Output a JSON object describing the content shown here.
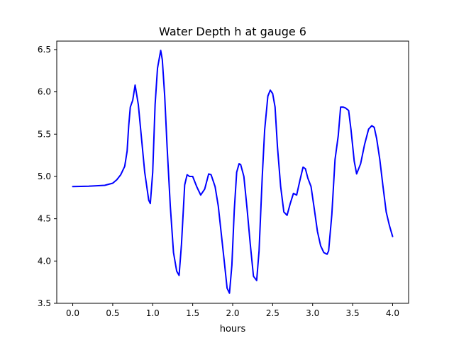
{
  "chart_data": {
    "type": "line",
    "title": "Water Depth h at gauge 6",
    "xlabel": "hours",
    "ylabel": "",
    "xlim": [
      -0.2,
      4.2
    ],
    "ylim": [
      3.5,
      6.6
    ],
    "xticks": [
      0.0,
      0.5,
      1.0,
      1.5,
      2.0,
      2.5,
      3.0,
      3.5,
      4.0
    ],
    "xtick_labels": [
      "0.0",
      "0.5",
      "1.0",
      "1.5",
      "2.0",
      "2.5",
      "3.0",
      "3.5",
      "4.0"
    ],
    "yticks": [
      3.5,
      4.0,
      4.5,
      5.0,
      5.5,
      6.0,
      6.5
    ],
    "ytick_labels": [
      "3.5",
      "4.0",
      "4.5",
      "5.0",
      "5.5",
      "6.0",
      "6.5"
    ],
    "grid": false,
    "series": [
      {
        "color": "#0000ff",
        "x": [
          0.0,
          0.2,
          0.4,
          0.5,
          0.55,
          0.6,
          0.65,
          0.68,
          0.7,
          0.72,
          0.75,
          0.78,
          0.82,
          0.85,
          0.9,
          0.95,
          0.97,
          1.0,
          1.03,
          1.06,
          1.1,
          1.12,
          1.15,
          1.18,
          1.22,
          1.26,
          1.3,
          1.33,
          1.36,
          1.4,
          1.43,
          1.46,
          1.5,
          1.55,
          1.6,
          1.65,
          1.7,
          1.73,
          1.78,
          1.82,
          1.86,
          1.9,
          1.93,
          1.96,
          1.99,
          2.02,
          2.05,
          2.08,
          2.1,
          2.14,
          2.18,
          2.22,
          2.26,
          2.3,
          2.33,
          2.37,
          2.4,
          2.44,
          2.47,
          2.5,
          2.53,
          2.56,
          2.6,
          2.64,
          2.68,
          2.72,
          2.76,
          2.8,
          2.84,
          2.88,
          2.91,
          2.94,
          2.98,
          3.02,
          3.06,
          3.1,
          3.14,
          3.18,
          3.2,
          3.24,
          3.28,
          3.32,
          3.35,
          3.38,
          3.41,
          3.45,
          3.48,
          3.52,
          3.55,
          3.6,
          3.65,
          3.7,
          3.74,
          3.77,
          3.8,
          3.84,
          3.88,
          3.92,
          3.96,
          4.0
        ],
        "y": [
          4.88,
          4.885,
          4.895,
          4.92,
          4.96,
          5.02,
          5.12,
          5.3,
          5.6,
          5.82,
          5.9,
          6.08,
          5.85,
          5.55,
          5.05,
          4.72,
          4.68,
          5.05,
          5.85,
          6.28,
          6.49,
          6.38,
          5.95,
          5.35,
          4.65,
          4.1,
          3.88,
          3.83,
          4.2,
          4.9,
          5.02,
          5.0,
          5.0,
          4.88,
          4.78,
          4.85,
          5.03,
          5.02,
          4.88,
          4.65,
          4.3,
          3.95,
          3.68,
          3.62,
          3.95,
          4.6,
          5.05,
          5.15,
          5.14,
          5.0,
          4.62,
          4.2,
          3.82,
          3.77,
          4.12,
          5.0,
          5.55,
          5.95,
          6.02,
          5.98,
          5.82,
          5.35,
          4.88,
          4.58,
          4.54,
          4.68,
          4.8,
          4.78,
          4.95,
          5.11,
          5.09,
          4.98,
          4.88,
          4.62,
          4.35,
          4.18,
          4.1,
          4.08,
          4.12,
          4.55,
          5.2,
          5.48,
          5.82,
          5.82,
          5.81,
          5.78,
          5.55,
          5.18,
          5.03,
          5.15,
          5.38,
          5.56,
          5.6,
          5.58,
          5.45,
          5.2,
          4.88,
          4.58,
          4.42,
          4.29
        ]
      }
    ]
  }
}
